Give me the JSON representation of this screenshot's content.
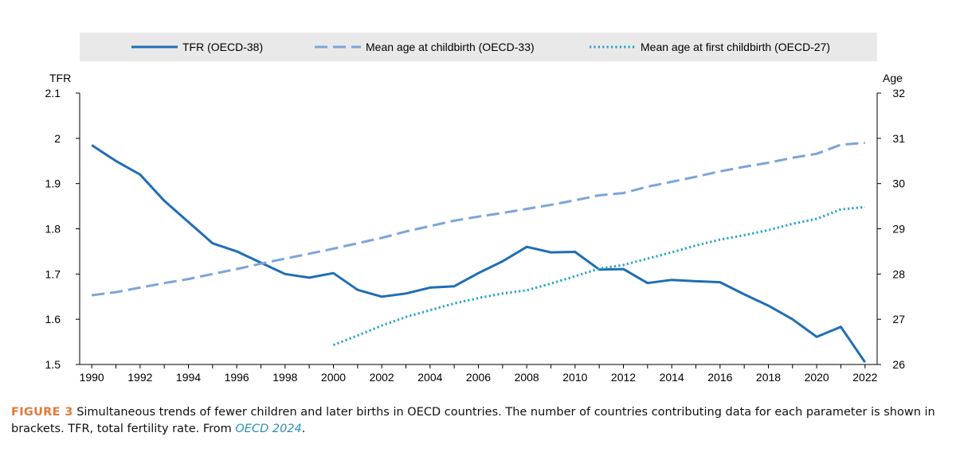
{
  "chart_data": {
    "type": "line",
    "title": "",
    "x": [
      1990,
      1991,
      1992,
      1993,
      1994,
      1995,
      1996,
      1997,
      1998,
      1999,
      2000,
      2001,
      2002,
      2003,
      2004,
      2005,
      2006,
      2007,
      2008,
      2009,
      2010,
      2011,
      2012,
      2013,
      2014,
      2015,
      2016,
      2017,
      2018,
      2019,
      2020,
      2021,
      2022
    ],
    "x_ticks": [
      "1990",
      "1992",
      "1994",
      "1996",
      "1998",
      "2000",
      "2002",
      "2004",
      "2006",
      "2008",
      "2010",
      "2012",
      "2014",
      "2016",
      "2018",
      "2020",
      "2022"
    ],
    "xlim": [
      1989.5,
      2022.5
    ],
    "left_axis": {
      "label": "TFR",
      "ylim": [
        1.5,
        2.1
      ],
      "ticks": [
        "1.5",
        "1.6",
        "1.7",
        "1.8",
        "1.9",
        "2",
        "2.1"
      ]
    },
    "right_axis": {
      "label": "Age",
      "ylim": [
        26,
        32
      ],
      "ticks": [
        "26",
        "27",
        "28",
        "29",
        "30",
        "31",
        "32"
      ]
    },
    "series": [
      {
        "name": "TFR (OECD-38)",
        "axis": "left",
        "style": "solid",
        "color": "#1f6eb5",
        "values": [
          1.985,
          1.95,
          1.92,
          1.862,
          1.815,
          1.768,
          1.75,
          1.725,
          1.7,
          1.692,
          1.702,
          1.665,
          1.65,
          1.657,
          1.67,
          1.673,
          1.702,
          1.728,
          1.76,
          1.748,
          1.749,
          1.71,
          1.711,
          1.68,
          1.687,
          1.684,
          1.682,
          1.655,
          1.63,
          1.6,
          1.561,
          1.583,
          1.505
        ]
      },
      {
        "name": "Mean age at childbirth (OECD-33)",
        "axis": "right",
        "style": "dashed",
        "color": "#7ba5d8",
        "values": [
          27.53,
          27.6,
          27.7,
          27.8,
          27.89,
          28.0,
          28.11,
          28.23,
          28.34,
          28.45,
          28.56,
          28.68,
          28.8,
          28.94,
          29.06,
          29.18,
          29.27,
          29.35,
          29.44,
          29.53,
          29.63,
          29.74,
          29.79,
          29.93,
          30.04,
          30.15,
          30.27,
          30.37,
          30.46,
          30.57,
          30.66,
          30.86,
          30.9
        ]
      },
      {
        "name": "Mean age at first childbirth (OECD-27)",
        "axis": "right",
        "style": "dotted",
        "color": "#22a3c9",
        "values": [
          null,
          null,
          null,
          null,
          null,
          null,
          null,
          null,
          null,
          null,
          26.43,
          26.64,
          26.86,
          27.05,
          27.2,
          27.35,
          27.47,
          27.57,
          27.64,
          27.79,
          27.95,
          28.12,
          28.2,
          28.34,
          28.48,
          28.63,
          28.76,
          28.86,
          28.97,
          29.11,
          29.22,
          29.43,
          29.48
        ]
      }
    ],
    "legend_position": "top",
    "grid": false
  },
  "caption": {
    "label": "FIGURE 3",
    "text": " Simultaneous trends of fewer children and later births in OECD countries. The number of countries contributing data for each parameter is shown in brackets. TFR, total fertility rate. From ",
    "reference": "OECD 2024",
    "end": "."
  }
}
